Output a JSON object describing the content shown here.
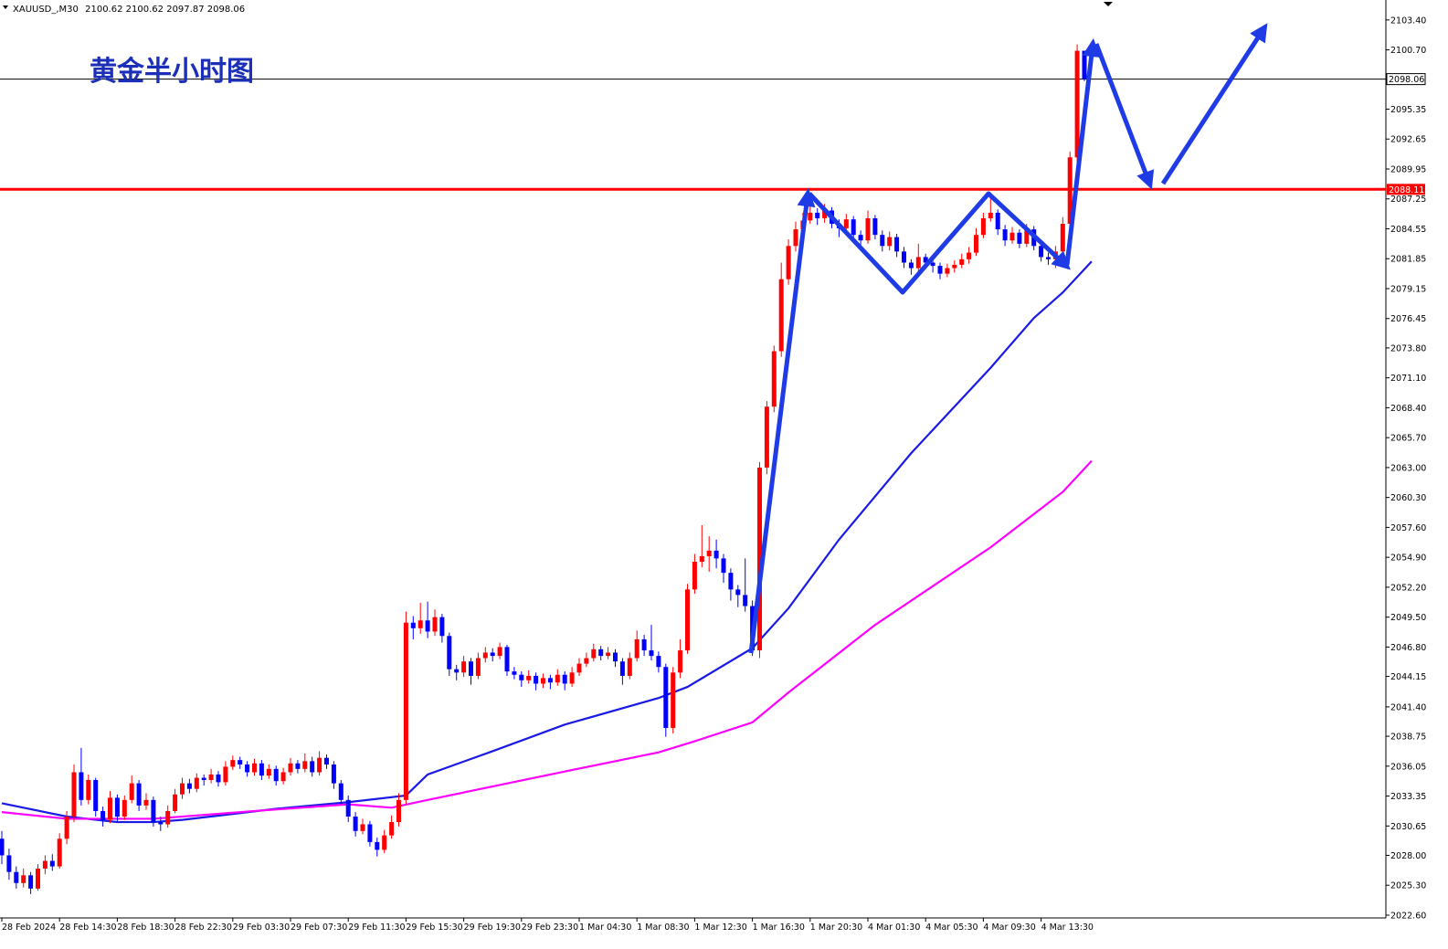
{
  "chart_data": {
    "type": "candlestick",
    "symbol": "XAUUSD_,M30",
    "title": "黄金半小时图",
    "up_color": "#ff0000",
    "down_color": "#0000ff",
    "ylim": [
      2022.35,
      2105.2
    ],
    "yticks": [
      {
        "value": 2022.6,
        "label": "2022.60"
      },
      {
        "value": 2025.3,
        "label": "2025.30"
      },
      {
        "value": 2028.0,
        "label": "2028.00"
      },
      {
        "value": 2030.65,
        "label": "2030.65"
      },
      {
        "value": 2033.35,
        "label": "2033.35"
      },
      {
        "value": 2036.05,
        "label": "2036.05"
      },
      {
        "value": 2038.75,
        "label": "2038.75"
      },
      {
        "value": 2041.4,
        "label": "2041.40"
      },
      {
        "value": 2044.15,
        "label": "2044.15"
      },
      {
        "value": 2046.8,
        "label": "2046.80"
      },
      {
        "value": 2049.5,
        "label": "2049.50"
      },
      {
        "value": 2052.2,
        "label": "2052.20"
      },
      {
        "value": 2054.9,
        "label": "2054.90"
      },
      {
        "value": 2057.6,
        "label": "2057.60"
      },
      {
        "value": 2060.3,
        "label": "2060.30"
      },
      {
        "value": 2063.0,
        "label": "2063.00"
      },
      {
        "value": 2065.7,
        "label": "2065.70"
      },
      {
        "value": 2068.4,
        "label": "2068.40"
      },
      {
        "value": 2071.1,
        "label": "2071.10"
      },
      {
        "value": 2073.8,
        "label": "2073.80"
      },
      {
        "value": 2076.45,
        "label": "2076.45"
      },
      {
        "value": 2079.15,
        "label": "2079.15"
      },
      {
        "value": 2081.85,
        "label": "2081.85"
      },
      {
        "value": 2084.55,
        "label": "2084.55"
      },
      {
        "value": 2087.25,
        "label": "2087.25"
      },
      {
        "value": 2089.95,
        "label": "2089.95"
      },
      {
        "value": 2092.65,
        "label": "2092.65"
      },
      {
        "value": 2095.35,
        "label": "2095.35"
      },
      {
        "value": 2100.7,
        "label": "2100.70"
      },
      {
        "value": 2103.4,
        "label": "2103.40"
      }
    ],
    "categories": [
      "28 Feb 2024",
      null,
      null,
      null,
      null,
      null,
      null,
      null,
      "28 Feb 14:30",
      null,
      null,
      null,
      null,
      null,
      null,
      null,
      "28 Feb 18:30",
      null,
      null,
      null,
      null,
      null,
      null,
      null,
      "28 Feb 22:30",
      null,
      null,
      null,
      null,
      null,
      null,
      null,
      "29 Feb 03:30",
      null,
      null,
      null,
      null,
      null,
      null,
      null,
      "29 Feb 07:30",
      null,
      null,
      null,
      null,
      null,
      null,
      null,
      "29 Feb 11:30",
      null,
      null,
      null,
      null,
      null,
      null,
      null,
      "29 Feb 15:30",
      null,
      null,
      null,
      null,
      null,
      null,
      null,
      "29 Feb 19:30",
      null,
      null,
      null,
      null,
      null,
      null,
      null,
      "29 Feb 23:30",
      null,
      null,
      null,
      null,
      null,
      null,
      null,
      "1 Mar 04:30",
      null,
      null,
      null,
      null,
      null,
      null,
      null,
      "1 Mar 08:30",
      null,
      null,
      null,
      null,
      null,
      null,
      null,
      "1 Mar 12:30",
      null,
      null,
      null,
      null,
      null,
      null,
      null,
      "1 Mar 16:30",
      null,
      null,
      null,
      null,
      null,
      null,
      null,
      "1 Mar 20:30",
      null,
      null,
      null,
      null,
      null,
      null,
      null,
      "4 Mar 01:30",
      null,
      null,
      null,
      null,
      null,
      null,
      null,
      "4 Mar 05:30",
      null,
      null,
      null,
      null,
      null,
      null,
      null,
      "4 Mar 09:30",
      null,
      null,
      null,
      null,
      null,
      null,
      null,
      "4 Mar 13:30",
      null,
      null,
      null,
      null,
      null,
      null
    ],
    "ohlc": [
      [
        2029.5,
        2030.2,
        2027.2,
        2028.0
      ],
      [
        2028.0,
        2028.6,
        2025.8,
        2026.5
      ],
      [
        2026.5,
        2027.0,
        2025.0,
        2025.5
      ],
      [
        2025.5,
        2026.8,
        2025.1,
        2026.2
      ],
      [
        2026.2,
        2026.5,
        2024.5,
        2025.0
      ],
      [
        2025.0,
        2027.2,
        2024.8,
        2026.8
      ],
      [
        2026.8,
        2028.0,
        2026.3,
        2027.5
      ],
      [
        2027.5,
        2028.1,
        2026.6,
        2027.0
      ],
      [
        2027.0,
        2030.0,
        2026.8,
        2029.5
      ],
      [
        2029.5,
        2032.0,
        2029.0,
        2031.5
      ],
      [
        2031.5,
        2036.2,
        2031.0,
        2035.5
      ],
      [
        2035.5,
        2037.7,
        2032.5,
        2033.0
      ],
      [
        2033.0,
        2035.3,
        2032.6,
        2034.8
      ],
      [
        2034.8,
        2035.0,
        2031.5,
        2032.0
      ],
      [
        2032.0,
        2032.4,
        2030.6,
        2031.2
      ],
      [
        2031.2,
        2033.8,
        2030.9,
        2033.2
      ],
      [
        2033.2,
        2033.5,
        2031.0,
        2031.5
      ],
      [
        2031.5,
        2033.4,
        2031.2,
        2033.0
      ],
      [
        2033.0,
        2035.2,
        2032.7,
        2034.5
      ],
      [
        2034.5,
        2034.8,
        2032.0,
        2032.5
      ],
      [
        2032.5,
        2033.6,
        2032.1,
        2033.0
      ],
      [
        2033.0,
        2033.3,
        2030.6,
        2031.0
      ],
      [
        2031.0,
        2031.5,
        2030.2,
        2030.8
      ],
      [
        2030.8,
        2032.5,
        2030.5,
        2032.0
      ],
      [
        2032.0,
        2034.0,
        2031.8,
        2033.5
      ],
      [
        2033.5,
        2035.0,
        2033.1,
        2034.5
      ],
      [
        2034.5,
        2034.9,
        2033.6,
        2034.0
      ],
      [
        2034.0,
        2035.4,
        2033.7,
        2035.0
      ],
      [
        2035.0,
        2035.3,
        2034.3,
        2034.8
      ],
      [
        2034.8,
        2035.8,
        2034.5,
        2035.3
      ],
      [
        2035.3,
        2035.6,
        2034.2,
        2034.6
      ],
      [
        2034.6,
        2036.5,
        2034.3,
        2036.0
      ],
      [
        2036.0,
        2037.0,
        2035.7,
        2036.6
      ],
      [
        2036.6,
        2036.9,
        2035.8,
        2036.2
      ],
      [
        2036.2,
        2036.5,
        2035.1,
        2035.5
      ],
      [
        2035.5,
        2036.7,
        2035.2,
        2036.3
      ],
      [
        2036.3,
        2036.6,
        2034.8,
        2035.2
      ],
      [
        2035.2,
        2036.2,
        2034.9,
        2035.8
      ],
      [
        2035.8,
        2036.1,
        2034.3,
        2034.7
      ],
      [
        2034.7,
        2035.9,
        2034.4,
        2035.5
      ],
      [
        2035.5,
        2036.8,
        2035.2,
        2036.3
      ],
      [
        2036.3,
        2036.6,
        2035.4,
        2035.8
      ],
      [
        2035.8,
        2037.2,
        2035.5,
        2036.5
      ],
      [
        2036.5,
        2036.9,
        2035.1,
        2035.5
      ],
      [
        2035.5,
        2037.4,
        2035.2,
        2036.8
      ],
      [
        2036.8,
        2037.1,
        2035.8,
        2036.2
      ],
      [
        2036.2,
        2036.5,
        2034.0,
        2034.5
      ],
      [
        2034.5,
        2034.8,
        2032.6,
        2033.0
      ],
      [
        2033.0,
        2033.4,
        2031.0,
        2031.5
      ],
      [
        2031.5,
        2031.9,
        2029.7,
        2030.2
      ],
      [
        2030.2,
        2031.3,
        2029.9,
        2030.8
      ],
      [
        2030.8,
        2031.1,
        2028.8,
        2029.2
      ],
      [
        2029.2,
        2029.6,
        2027.9,
        2028.5
      ],
      [
        2028.5,
        2030.3,
        2028.2,
        2029.8
      ],
      [
        2029.8,
        2031.6,
        2029.5,
        2031.0
      ],
      [
        2031.0,
        2033.6,
        2030.6,
        2033.0
      ],
      [
        2033.0,
        2050.0,
        2032.6,
        2049.0
      ],
      [
        2049.0,
        2049.6,
        2047.5,
        2048.5
      ],
      [
        2048.5,
        2050.8,
        2048.0,
        2049.2
      ],
      [
        2049.2,
        2050.9,
        2047.6,
        2048.2
      ],
      [
        2048.2,
        2050.2,
        2047.8,
        2049.5
      ],
      [
        2049.5,
        2049.8,
        2047.2,
        2047.8
      ],
      [
        2047.8,
        2048.1,
        2044.2,
        2044.8
      ],
      [
        2044.8,
        2045.2,
        2043.8,
        2044.5
      ],
      [
        2044.5,
        2046.0,
        2044.1,
        2045.5
      ],
      [
        2045.5,
        2045.8,
        2043.4,
        2044.2
      ],
      [
        2044.2,
        2046.3,
        2043.9,
        2045.8
      ],
      [
        2045.8,
        2046.8,
        2045.4,
        2046.3
      ],
      [
        2046.3,
        2046.7,
        2045.5,
        2046.0
      ],
      [
        2046.0,
        2047.2,
        2045.7,
        2046.8
      ],
      [
        2046.8,
        2047.0,
        2044.2,
        2044.6
      ],
      [
        2044.6,
        2045.0,
        2043.9,
        2044.3
      ],
      [
        2044.3,
        2044.6,
        2043.2,
        2043.8
      ],
      [
        2043.8,
        2044.7,
        2043.5,
        2044.2
      ],
      [
        2044.2,
        2044.5,
        2042.9,
        2043.5
      ],
      [
        2043.5,
        2044.4,
        2043.1,
        2044.0
      ],
      [
        2044.0,
        2044.3,
        2043.0,
        2043.6
      ],
      [
        2043.6,
        2044.8,
        2043.3,
        2044.3
      ],
      [
        2044.3,
        2044.6,
        2042.9,
        2043.5
      ],
      [
        2043.5,
        2045.0,
        2043.2,
        2044.5
      ],
      [
        2044.5,
        2045.8,
        2044.2,
        2045.3
      ],
      [
        2045.3,
        2046.3,
        2045.0,
        2045.8
      ],
      [
        2045.8,
        2047.1,
        2045.5,
        2046.6
      ],
      [
        2046.6,
        2046.9,
        2045.6,
        2046.0
      ],
      [
        2046.0,
        2046.8,
        2045.7,
        2046.3
      ],
      [
        2046.3,
        2046.6,
        2045.0,
        2045.5
      ],
      [
        2045.5,
        2045.8,
        2043.4,
        2044.2
      ],
      [
        2044.2,
        2046.3,
        2043.9,
        2045.8
      ],
      [
        2045.8,
        2048.3,
        2045.5,
        2047.5
      ],
      [
        2047.5,
        2047.9,
        2046.0,
        2046.5
      ],
      [
        2046.5,
        2048.8,
        2045.6,
        2046.0
      ],
      [
        2046.0,
        2046.4,
        2044.5,
        2045.0
      ],
      [
        2045.0,
        2045.3,
        2038.7,
        2039.5
      ],
      [
        2039.5,
        2045.0,
        2039.0,
        2044.5
      ],
      [
        2044.5,
        2047.5,
        2044.0,
        2046.5
      ],
      [
        2046.5,
        2052.5,
        2046.2,
        2052.0
      ],
      [
        2052.0,
        2055.2,
        2051.6,
        2054.5
      ],
      [
        2054.5,
        2057.8,
        2054.0,
        2055.0
      ],
      [
        2055.0,
        2056.8,
        2053.6,
        2055.5
      ],
      [
        2055.5,
        2056.5,
        2053.9,
        2054.8
      ],
      [
        2054.8,
        2055.2,
        2052.6,
        2053.5
      ],
      [
        2053.5,
        2053.9,
        2051.0,
        2052.0
      ],
      [
        2052.0,
        2052.4,
        2050.4,
        2051.5
      ],
      [
        2051.5,
        2054.8,
        2050.0,
        2050.5
      ],
      [
        2050.5,
        2051.0,
        2046.0,
        2046.5
      ],
      [
        2046.5,
        2063.5,
        2045.8,
        2063.0
      ],
      [
        2063.0,
        2069.0,
        2062.4,
        2068.5
      ],
      [
        2068.5,
        2074.0,
        2068.0,
        2073.5
      ],
      [
        2073.5,
        2081.5,
        2073.0,
        2080.0
      ],
      [
        2080.0,
        2083.6,
        2079.5,
        2083.0
      ],
      [
        2083.0,
        2085.2,
        2082.5,
        2084.5
      ],
      [
        2084.5,
        2086.0,
        2084.0,
        2085.3
      ],
      [
        2085.3,
        2087.4,
        2085.0,
        2086.0
      ],
      [
        2086.0,
        2086.4,
        2084.9,
        2085.5
      ],
      [
        2085.5,
        2086.8,
        2085.1,
        2086.2
      ],
      [
        2086.2,
        2086.5,
        2084.6,
        2085.0
      ],
      [
        2085.0,
        2085.4,
        2083.8,
        2084.6
      ],
      [
        2084.6,
        2085.9,
        2084.2,
        2085.4
      ],
      [
        2085.4,
        2085.7,
        2083.6,
        2084.0
      ],
      [
        2084.0,
        2084.4,
        2083.0,
        2083.5
      ],
      [
        2083.5,
        2086.2,
        2083.2,
        2085.5
      ],
      [
        2085.5,
        2085.8,
        2083.6,
        2084.0
      ],
      [
        2084.0,
        2084.4,
        2082.5,
        2083.0
      ],
      [
        2083.0,
        2084.3,
        2082.6,
        2083.8
      ],
      [
        2083.8,
        2084.1,
        2082.0,
        2082.5
      ],
      [
        2082.5,
        2082.9,
        2081.0,
        2081.5
      ],
      [
        2081.5,
        2081.8,
        2080.4,
        2081.0
      ],
      [
        2081.0,
        2083.2,
        2080.7,
        2082.0
      ],
      [
        2082.0,
        2082.3,
        2081.0,
        2081.5
      ],
      [
        2081.5,
        2081.9,
        2080.6,
        2081.2
      ],
      [
        2081.2,
        2081.5,
        2080.0,
        2080.5
      ],
      [
        2080.5,
        2081.4,
        2080.2,
        2081.0
      ],
      [
        2081.0,
        2081.7,
        2080.6,
        2081.3
      ],
      [
        2081.3,
        2082.3,
        2081.0,
        2081.8
      ],
      [
        2081.8,
        2082.9,
        2081.4,
        2082.4
      ],
      [
        2082.4,
        2084.6,
        2082.1,
        2084.0
      ],
      [
        2084.0,
        2086.0,
        2083.7,
        2085.5
      ],
      [
        2085.5,
        2087.8,
        2085.2,
        2086.0
      ],
      [
        2086.0,
        2086.3,
        2084.0,
        2084.5
      ],
      [
        2084.5,
        2084.9,
        2083.0,
        2083.5
      ],
      [
        2083.5,
        2084.7,
        2083.2,
        2084.2
      ],
      [
        2084.2,
        2084.5,
        2082.8,
        2083.2
      ],
      [
        2083.2,
        2085.0,
        2082.9,
        2084.5
      ],
      [
        2084.5,
        2084.8,
        2082.6,
        2083.0
      ],
      [
        2083.0,
        2083.3,
        2081.6,
        2082.0
      ],
      [
        2082.0,
        2082.4,
        2081.3,
        2081.8
      ],
      [
        2081.8,
        2083.0,
        2081.0,
        2082.5
      ],
      [
        2082.5,
        2085.6,
        2082.2,
        2085.0
      ],
      [
        2085.0,
        2091.5,
        2084.7,
        2091.0
      ],
      [
        2091.0,
        2101.2,
        2090.6,
        2100.62
      ],
      [
        2100.62,
        2100.62,
        2097.87,
        2098.06
      ]
    ],
    "lines": [
      {
        "color": "#1a1ae6",
        "x": [
          0,
          9,
          16,
          21,
          25,
          38,
          48,
          56,
          59,
          68,
          78,
          91,
          95,
          104,
          109,
          116,
          126,
          137,
          143,
          147,
          151
        ],
        "values": [
          2032.7,
          2031.5,
          2031.0,
          2031.0,
          2031.2,
          2032.2,
          2032.8,
          2033.4,
          2035.3,
          2037.4,
          2039.8,
          2042.2,
          2043.2,
          2046.7,
          2050.3,
          2056.5,
          2064.3,
          2072.0,
          2076.5,
          2078.8,
          2081.6
        ]
      },
      {
        "color": "#ff00ff",
        "x": [
          0,
          9,
          21,
          35,
          48,
          54,
          59,
          76,
          91,
          96,
          104,
          109,
          121,
          137,
          147,
          151
        ],
        "values": [
          2031.9,
          2031.3,
          2031.3,
          2032.0,
          2032.6,
          2032.3,
          2033.0,
          2035.3,
          2037.3,
          2038.3,
          2040.0,
          2042.7,
          2048.8,
          2055.8,
          2060.8,
          2063.6
        ]
      }
    ],
    "hlines": [
      {
        "value": 2098.06,
        "color": "#000000"
      },
      {
        "value": 2088.11,
        "color": "#ff0000"
      }
    ]
  }
}
